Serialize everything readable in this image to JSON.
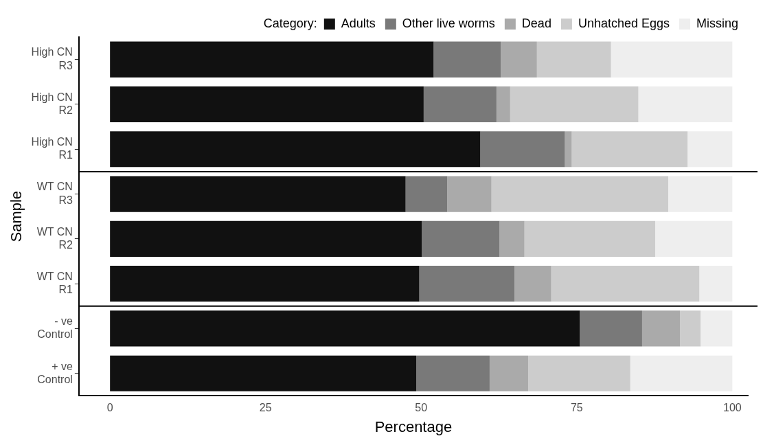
{
  "chart_data": {
    "type": "bar",
    "orientation": "horizontal",
    "stacked": true,
    "xlabel": "Percentage",
    "ylabel": "Sample",
    "legend_title": "Category:",
    "legend": "top right",
    "categories": [
      "High CN R3",
      "High CN R2",
      "High CN R1",
      "WT CN R3",
      "WT CN R2",
      "WT CN R1",
      "- ve Control",
      "+ ve Control"
    ],
    "series": [
      {
        "name": "Adults",
        "color": "#111111",
        "values": [
          52.0,
          50.4,
          59.5,
          47.5,
          50.1,
          49.7,
          75.5,
          49.2
        ]
      },
      {
        "name": "Other live worms",
        "color": "#797979",
        "values": [
          10.8,
          11.7,
          13.6,
          6.7,
          12.5,
          15.3,
          10.0,
          11.8
        ]
      },
      {
        "name": "Dead",
        "color": "#aaaaaa",
        "values": [
          5.8,
          2.2,
          1.1,
          7.1,
          4.0,
          5.9,
          6.1,
          6.2
        ]
      },
      {
        "name": "Unhatched Eggs",
        "color": "#cccccc",
        "values": [
          11.9,
          20.6,
          18.6,
          28.4,
          21.0,
          23.8,
          3.3,
          16.4
        ]
      },
      {
        "name": "Missing",
        "color": "#eeeeee",
        "values": [
          19.5,
          15.1,
          7.2,
          10.3,
          12.4,
          5.3,
          5.1,
          16.4
        ]
      }
    ],
    "xlim": [
      -5,
      102.5
    ],
    "xticks": [
      0,
      25,
      50,
      75,
      100
    ],
    "grid": false
  }
}
